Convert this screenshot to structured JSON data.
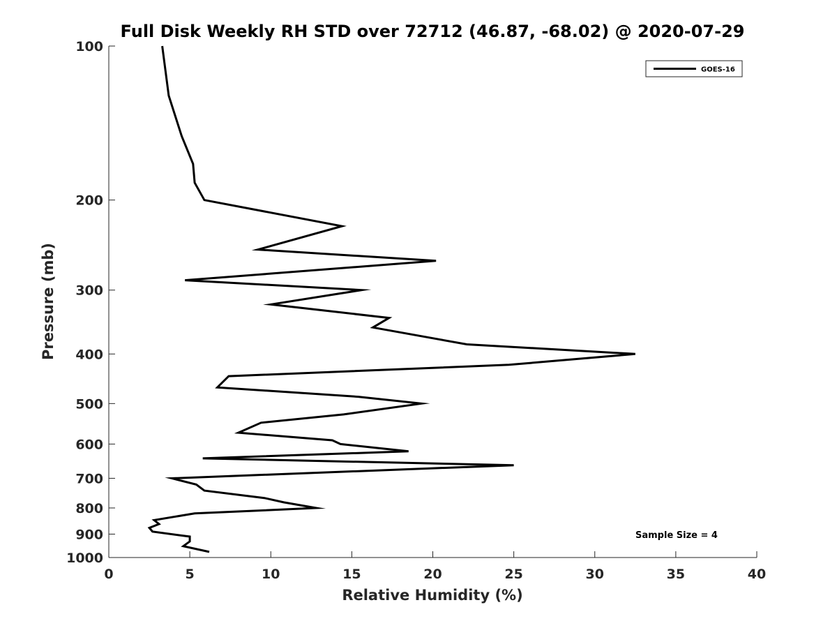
{
  "chart_data": {
    "type": "line",
    "title": "Full Disk Weekly RH STD over 72712 (46.87, -68.02) @ 2020-07-29",
    "xlabel": "Relative Humidity (%)",
    "ylabel": "Pressure (mb)",
    "xlim": [
      0,
      40
    ],
    "ylim": [
      100,
      1000
    ],
    "yscale": "log",
    "ydirection": "reversed",
    "xticks": [
      0,
      5,
      10,
      15,
      20,
      25,
      30,
      35,
      40
    ],
    "xtick_labels": [
      "0",
      "5",
      "10",
      "15",
      "20",
      "25",
      "30",
      "35",
      "40"
    ],
    "yticks": [
      100,
      200,
      300,
      400,
      500,
      600,
      700,
      800,
      900,
      1000
    ],
    "ytick_labels": [
      "100",
      "200",
      "300",
      "400",
      "500",
      "600",
      "700",
      "800",
      "900",
      "1000"
    ],
    "grid": false,
    "legend_position": "top-right",
    "annotation": "Sample Size = 4",
    "series": [
      {
        "name": "GOES-16",
        "color": "#000000",
        "points": [
          [
            3.3,
            100
          ],
          [
            3.7,
            125
          ],
          [
            4.5,
            150
          ],
          [
            5.2,
            170
          ],
          [
            5.3,
            185
          ],
          [
            5.9,
            200
          ],
          [
            14.4,
            225
          ],
          [
            9.2,
            250
          ],
          [
            20.2,
            263
          ],
          [
            4.7,
            287
          ],
          [
            15.6,
            300
          ],
          [
            10.0,
            320
          ],
          [
            17.3,
            340
          ],
          [
            16.3,
            355
          ],
          [
            22.1,
            383
          ],
          [
            32.5,
            400
          ],
          [
            24.7,
            420
          ],
          [
            7.4,
            442
          ],
          [
            6.7,
            465
          ],
          [
            15.4,
            485
          ],
          [
            19.3,
            500
          ],
          [
            14.5,
            525
          ],
          [
            9.4,
            545
          ],
          [
            8.0,
            570
          ],
          [
            13.8,
            590
          ],
          [
            14.3,
            600
          ],
          [
            18.5,
            620
          ],
          [
            5.8,
            640
          ],
          [
            25.0,
            660
          ],
          [
            3.9,
            700
          ],
          [
            5.4,
            720
          ],
          [
            5.9,
            740
          ],
          [
            9.6,
            765
          ],
          [
            10.8,
            780
          ],
          [
            12.8,
            800
          ],
          [
            5.3,
            820
          ],
          [
            2.8,
            845
          ],
          [
            3.1,
            860
          ],
          [
            2.5,
            875
          ],
          [
            2.7,
            890
          ],
          [
            5.0,
            910
          ],
          [
            5.0,
            930
          ],
          [
            4.6,
            950
          ],
          [
            6.2,
            975
          ]
        ]
      }
    ]
  }
}
